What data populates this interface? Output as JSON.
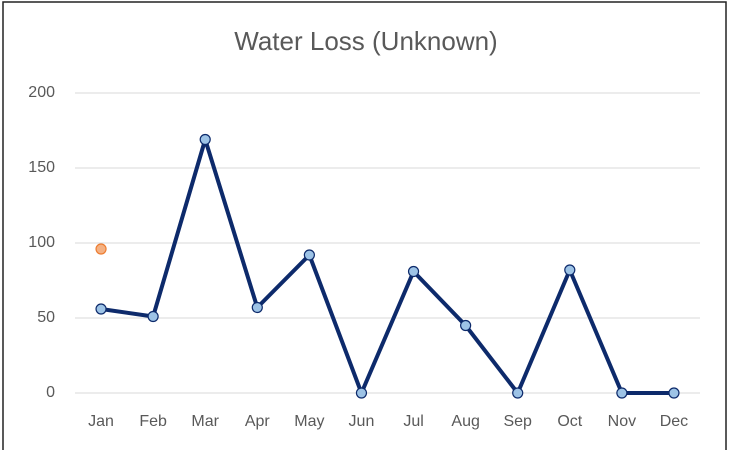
{
  "chart_data": {
    "type": "line",
    "title": "Water Loss (Unknown)",
    "categories": [
      "Jan",
      "Feb",
      "Mar",
      "Apr",
      "May",
      "Jun",
      "Jul",
      "Aug",
      "Sep",
      "Oct",
      "Nov",
      "Dec"
    ],
    "series": [
      {
        "color": "#0d2a6b",
        "marker_color": "#9dc3e6",
        "show_line": true,
        "values": [
          56,
          51,
          169,
          57,
          92,
          0,
          81,
          45,
          0,
          82,
          0,
          0
        ]
      },
      {
        "color": "#ed7d31",
        "marker_color": "#f4b183",
        "show_line": false,
        "values": [
          96,
          null,
          null,
          null,
          null,
          null,
          null,
          null,
          null,
          null,
          null,
          null
        ]
      }
    ],
    "ylim": [
      0,
      200
    ],
    "yticks": [
      0,
      50,
      100,
      150,
      200
    ],
    "grid": true
  }
}
